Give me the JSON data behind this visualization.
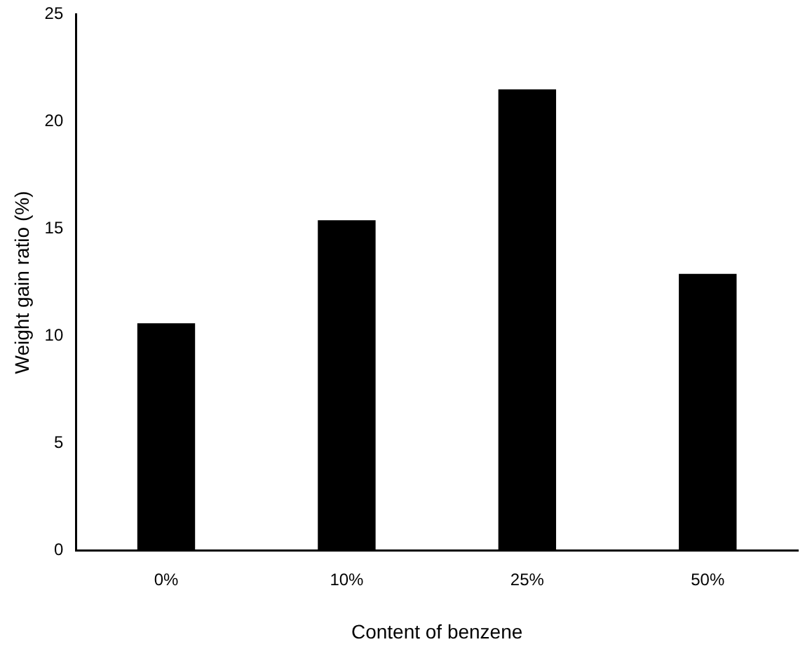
{
  "chart_data": {
    "type": "bar",
    "xlabel": "Content of benzene",
    "ylabel": "Weight gain ratio (%)",
    "categories": [
      "0%",
      "10%",
      "25%",
      "50%"
    ],
    "series": [
      {
        "color": "#000000",
        "values": [
          10.6,
          15.4,
          21.5,
          12.9
        ]
      }
    ],
    "ylim": [
      0,
      25
    ],
    "yticks": [
      0,
      5,
      10,
      15,
      20,
      25
    ],
    "grid": false,
    "legend": false
  }
}
